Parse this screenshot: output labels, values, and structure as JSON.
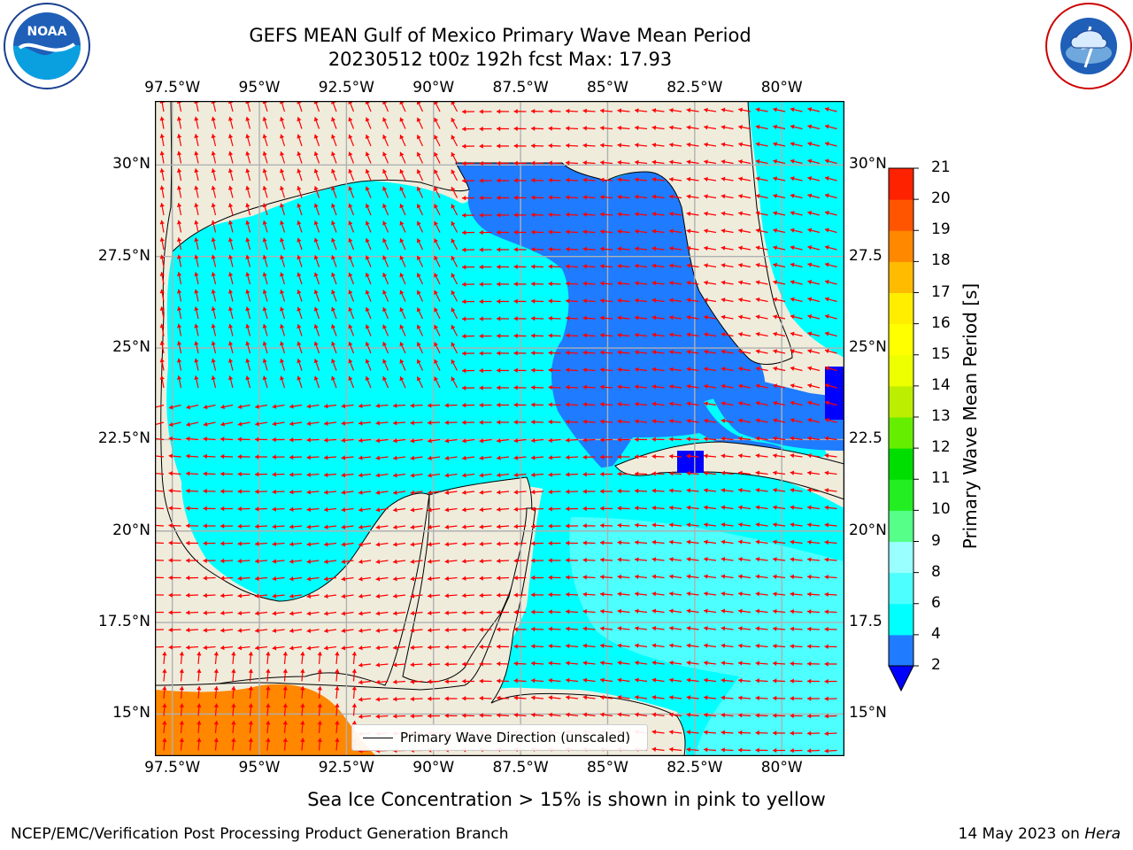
{
  "title": {
    "line1": "GEFS MEAN Gulf of Mexico Primary Wave Mean Period",
    "line2": "20230512 t00z 192h fcst   Max: 17.93"
  },
  "logos": {
    "left": {
      "icon": "noaa-logo",
      "text": "NOAA",
      "ring_text": "NATIONAL OCEANIC AND ATMOSPHERIC ADMINISTRATION · U.S. DEPARTMENT OF COMMERCE"
    },
    "right": {
      "icon": "nws-logo",
      "ring_text": "NATIONAL WEATHER SERVICE"
    }
  },
  "map": {
    "lon_labels": [
      "97.5°W",
      "95°W",
      "92.5°W",
      "90°W",
      "87.5°W",
      "85°W",
      "82.5°W",
      "80°W"
    ],
    "lat_labels_left": [
      "30°N",
      "27.5°N",
      "25°N",
      "22.5°N",
      "20°N",
      "17.5°N",
      "15°N"
    ],
    "lat_labels_right": [
      "30°N",
      "27.5",
      "25°N",
      "22.5",
      "20°N",
      "17.5",
      "15°N"
    ],
    "lon_range": [
      -98,
      -78
    ],
    "lat_range": [
      14,
      32
    ],
    "land_color": "#efecdc",
    "arrow_color": "#ff0000",
    "grid_color": "#b0b0b0"
  },
  "legend": {
    "label": "Primary Wave Direction (unscaled)"
  },
  "colorbar": {
    "label": "Primary Wave Mean Period [s]",
    "ticks": [
      "2",
      "4",
      "6",
      "8",
      "9",
      "10",
      "11",
      "12",
      "13",
      "14",
      "15",
      "16",
      "17",
      "18",
      "19",
      "20",
      "21"
    ],
    "under_color": "#0000ff",
    "colors": [
      "#1f7bff",
      "#00ffff",
      "#4dffff",
      "#99ffff",
      "#55ff88",
      "#22ee22",
      "#00dd00",
      "#66ee00",
      "#bbee00",
      "#eeff00",
      "#ffff00",
      "#ffee00",
      "#ffbb00",
      "#ff8800",
      "#ff5500",
      "#ff2200"
    ]
  },
  "subnote": "Sea Ice Concentration > 15% is shown in pink to yellow",
  "footer": {
    "left": "NCEP/EMC/Verification Post Processing Product Generation Branch",
    "right_prefix": "14 May 2023 on ",
    "right_host": "Hera"
  }
}
